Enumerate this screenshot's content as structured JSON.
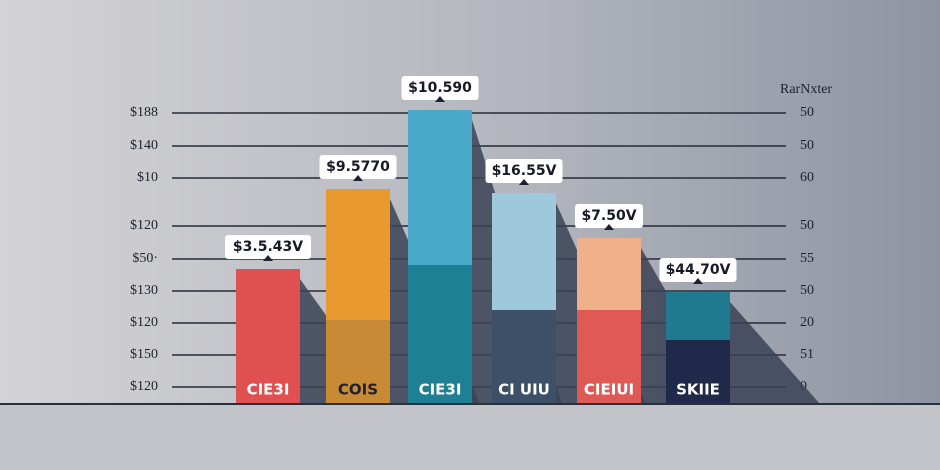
{
  "right_axis_title": "RarNxter",
  "left_labels": [
    "$188",
    "$140",
    "$10",
    "$120",
    "$50·",
    "$130",
    "$120",
    "$150",
    "$120"
  ],
  "right_labels": [
    "50",
    "50",
    "60",
    "50",
    "55",
    "50",
    "20",
    "51",
    "0"
  ],
  "bars": [
    {
      "label": "$3.5.43V",
      "text": "CIE3I"
    },
    {
      "label": "$9.5770",
      "text": "COIS"
    },
    {
      "label": "$10.590",
      "text": "CIE3I"
    },
    {
      "label": "$16.55V",
      "text": "CI UIU"
    },
    {
      "label": "$7.50V",
      "text": "CIEIUI"
    },
    {
      "label": "$44.70V",
      "text": "SKIIE"
    }
  ]
}
